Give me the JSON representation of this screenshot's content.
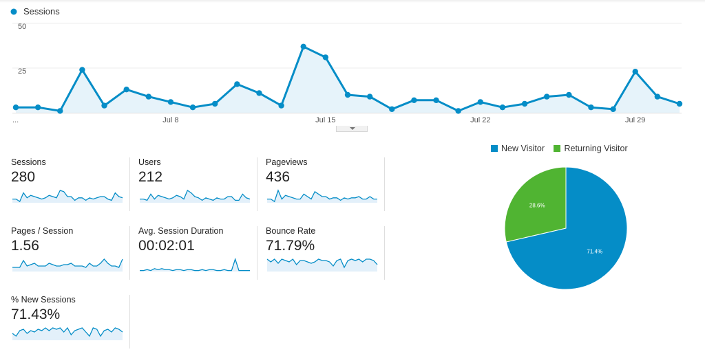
{
  "chart_data": [
    {
      "type": "area",
      "title": "",
      "legend": [
        "Sessions"
      ],
      "legend_placement": "top-left",
      "ylim": [
        0,
        50
      ],
      "y_ticks": [
        "50",
        "25"
      ],
      "x_tick_labels": [
        "...",
        "Jul 8",
        "Jul 15",
        "Jul 22",
        "Jul 29"
      ],
      "grid": true,
      "series": [
        {
          "name": "Sessions",
          "values": [
            3,
            3,
            1,
            24,
            4,
            13,
            9,
            6,
            3,
            5,
            16,
            11,
            4,
            37,
            31,
            10,
            9,
            2,
            7,
            7,
            1,
            6,
            3,
            5,
            9,
            10,
            3,
            2,
            23,
            9,
            5
          ]
        }
      ],
      "color": "#058dc7"
    },
    {
      "type": "pie",
      "legend_placement": "top",
      "labels": [
        "New Visitor",
        "Returning Visitor"
      ],
      "values": [
        71.4,
        28.6
      ],
      "value_labels": [
        "71.4%",
        "28.6%"
      ],
      "colors": [
        "#058dc7",
        "#50b432"
      ]
    }
  ],
  "metrics": [
    {
      "label": "Sessions",
      "value": "280",
      "spark": [
        3,
        3,
        1,
        8,
        4,
        6,
        5,
        4,
        3,
        4,
        6,
        5,
        4,
        10,
        9,
        5,
        5,
        2,
        4,
        4,
        2,
        4,
        3,
        4,
        5,
        5,
        3,
        2,
        8,
        5,
        4
      ]
    },
    {
      "label": "Users",
      "value": "212",
      "spark": [
        3,
        3,
        2,
        7,
        3,
        6,
        5,
        4,
        3,
        4,
        6,
        5,
        3,
        10,
        8,
        5,
        4,
        2,
        4,
        3,
        2,
        4,
        3,
        3,
        5,
        5,
        2,
        2,
        7,
        4,
        3
      ]
    },
    {
      "label": "Pageviews",
      "value": "436",
      "spark": [
        3,
        3,
        1,
        10,
        3,
        6,
        5,
        4,
        3,
        3,
        7,
        5,
        3,
        9,
        7,
        5,
        5,
        3,
        4,
        4,
        2,
        4,
        3,
        4,
        4,
        5,
        3,
        3,
        5,
        3,
        3
      ]
    },
    {
      "label": "Pages / Session",
      "value": "1.56",
      "spark": [
        3,
        3,
        3,
        8,
        4,
        5,
        6,
        4,
        4,
        4,
        6,
        5,
        4,
        4,
        5,
        5,
        6,
        4,
        4,
        4,
        3,
        6,
        4,
        4,
        6,
        9,
        6,
        4,
        4,
        3,
        9
      ]
    },
    {
      "label": "Avg. Session Duration",
      "value": "00:02:01",
      "spark": [
        1,
        1,
        2,
        1,
        3,
        2,
        3,
        2,
        2,
        1,
        2,
        2,
        1,
        2,
        2,
        1,
        1,
        2,
        1,
        2,
        2,
        1,
        1,
        2,
        1,
        1,
        13,
        1,
        1,
        1,
        1
      ]
    },
    {
      "label": "Bounce Rate",
      "value": "71.79%",
      "spark": [
        9,
        7,
        9,
        6,
        9,
        8,
        7,
        9,
        5,
        8,
        8,
        7,
        6,
        7,
        9,
        8,
        8,
        7,
        4,
        8,
        9,
        3,
        8,
        9,
        8,
        9,
        7,
        9,
        9,
        8,
        5
      ]
    },
    {
      "label": "% New Sessions",
      "value": "71.43%",
      "spark": [
        5,
        3,
        7,
        8,
        5,
        7,
        6,
        8,
        7,
        9,
        7,
        9,
        8,
        9,
        6,
        9,
        4,
        7,
        8,
        9,
        6,
        3,
        9,
        8,
        3,
        7,
        8,
        6,
        9,
        8,
        6
      ]
    }
  ],
  "colors": {
    "accent": "#058dc7",
    "accent_fill": "#e6f3fa",
    "spark_fill": "#e3f0fa",
    "returning": "#50b432",
    "grid": "#eeeeee"
  }
}
